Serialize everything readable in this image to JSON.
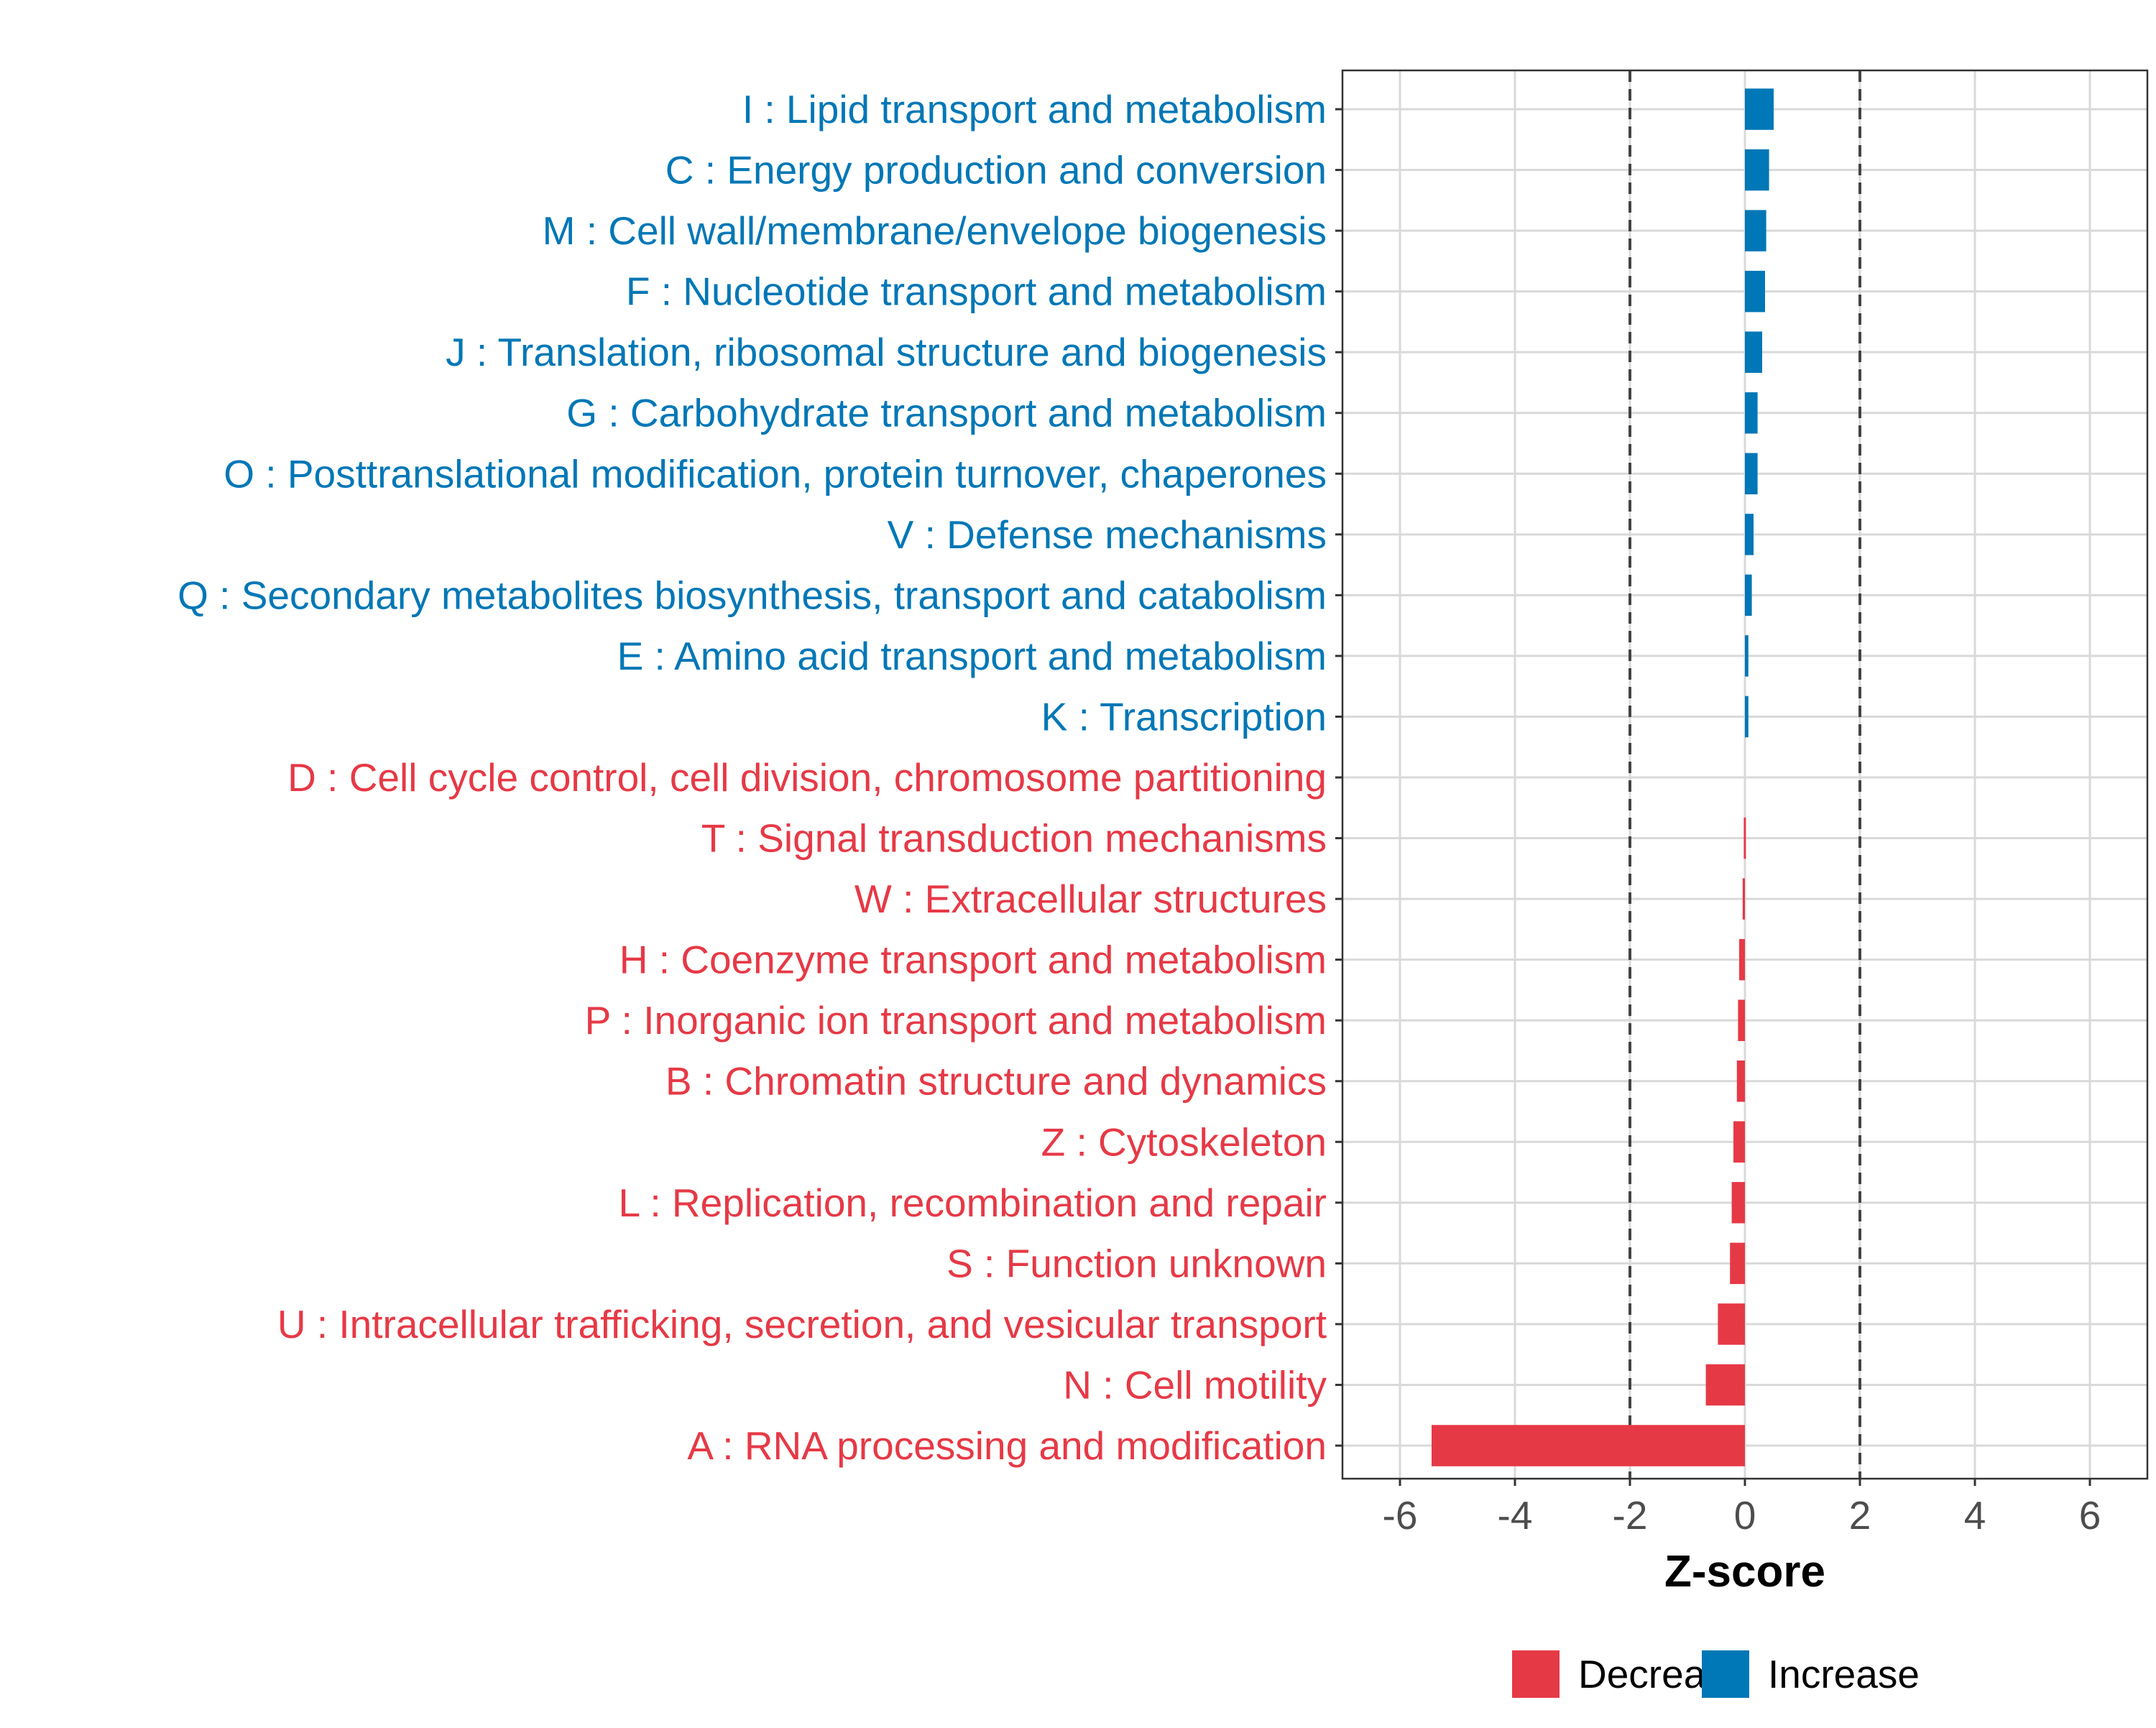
{
  "chart_data": {
    "type": "bar",
    "orientation": "horizontal",
    "title": "",
    "xlabel": "Z-score",
    "ylabel": "",
    "xlim": [
      -7,
      7
    ],
    "xticks": [
      -6,
      -4,
      -2,
      0,
      2,
      4,
      6
    ],
    "xtick_labels": [
      "-6",
      "-4",
      "-2",
      "0",
      "2",
      "4",
      "6"
    ],
    "threshold_lines": [
      -2,
      2
    ],
    "grid": true,
    "legend_position": "bottom",
    "legend": [
      {
        "label": "Decrease",
        "color": "#E63946"
      },
      {
        "label": "Increase",
        "color": "#0077B6"
      }
    ],
    "categories": [
      "I : Lipid transport and metabolism",
      "C : Energy production and conversion",
      "M : Cell wall/membrane/envelope biogenesis",
      "F : Nucleotide transport and metabolism",
      "J : Translation, ribosomal structure and biogenesis",
      "G : Carbohydrate transport and metabolism",
      "O : Posttranslational modification, protein turnover, chaperones",
      "V : Defense mechanisms",
      "Q : Secondary metabolites biosynthesis, transport and catabolism",
      "E : Amino acid transport and metabolism",
      "K : Transcription",
      "D : Cell cycle control, cell division, chromosome partitioning",
      "T : Signal transduction mechanisms",
      "W : Extracellular structures",
      "H : Coenzyme transport and metabolism",
      "P : Inorganic ion transport and metabolism",
      "B : Chromatin structure and dynamics",
      "Z : Cytoskeleton",
      "L : Replication, recombination and repair",
      "S : Function unknown",
      "U : Intracellular trafficking, secretion, and vesicular transport",
      "N : Cell motility",
      "A : RNA processing and modification"
    ],
    "values": [
      0.5,
      0.42,
      0.37,
      0.35,
      0.3,
      0.22,
      0.22,
      0.15,
      0.12,
      0.06,
      0.06,
      0.0,
      -0.02,
      -0.04,
      -0.1,
      -0.12,
      -0.14,
      -0.2,
      -0.23,
      -0.26,
      -0.47,
      -0.68,
      -5.45
    ],
    "directions": [
      "Increase",
      "Increase",
      "Increase",
      "Increase",
      "Increase",
      "Increase",
      "Increase",
      "Increase",
      "Increase",
      "Increase",
      "Increase",
      "Decrease",
      "Decrease",
      "Decrease",
      "Decrease",
      "Decrease",
      "Decrease",
      "Decrease",
      "Decrease",
      "Decrease",
      "Decrease",
      "Decrease",
      "Decrease"
    ]
  }
}
